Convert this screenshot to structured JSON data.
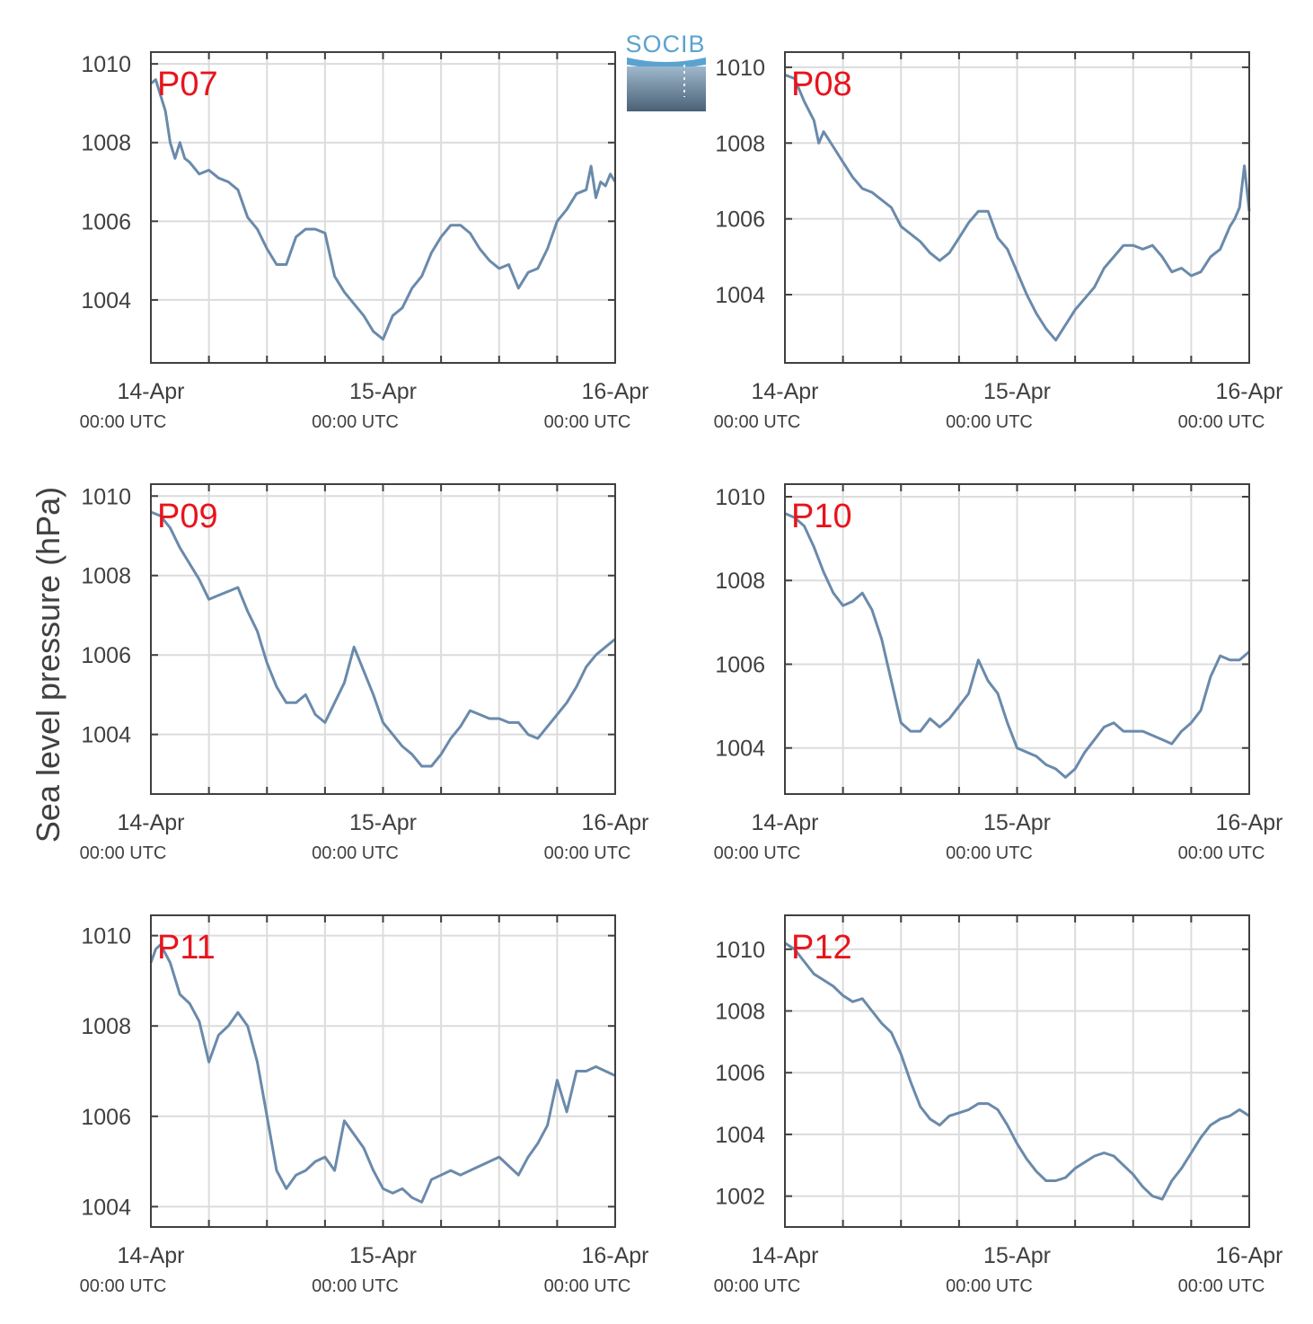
{
  "figure": {
    "ylabel": "Sea level pressure (hPa)",
    "logo_text": "SOCIB",
    "line_color": "#6a8aab",
    "label_color": "#e8141c",
    "grid_color": "#dcdcdc"
  },
  "chart_data": [
    {
      "type": "line",
      "title": "P07",
      "ylim": [
        1002.4,
        1010.3
      ],
      "yticks": [
        1004,
        1006,
        1008,
        1010
      ],
      "xlim": [
        0,
        48
      ],
      "xticks": [
        {
          "x": 0,
          "main": "14-Apr",
          "sub": "00:00 UTC"
        },
        {
          "x": 24,
          "main": "15-Apr",
          "sub": "00:00 UTC"
        },
        {
          "x": 48,
          "main": "16-Apr",
          "sub": "00:00 UTC"
        }
      ],
      "series": [
        {
          "x": [
            0,
            0.5,
            1,
            1.5,
            2,
            2.5,
            3,
            3.5,
            4,
            5,
            6,
            7,
            8,
            9,
            10,
            11,
            12,
            13,
            14,
            15,
            16,
            17,
            18,
            19,
            20,
            21,
            22,
            23,
            24,
            25,
            26,
            27,
            28,
            29,
            30,
            31,
            32,
            33,
            34,
            35,
            36,
            37,
            38,
            39,
            40,
            41,
            42,
            43,
            44,
            45,
            45.5,
            46,
            46.5,
            47,
            47.5,
            48
          ],
          "y": [
            1009.5,
            1009.6,
            1009.2,
            1008.8,
            1008.0,
            1007.6,
            1008.0,
            1007.6,
            1007.5,
            1007.2,
            1007.3,
            1007.1,
            1007.0,
            1006.8,
            1006.1,
            1005.8,
            1005.3,
            1004.9,
            1004.9,
            1005.6,
            1005.8,
            1005.8,
            1005.7,
            1004.6,
            1004.2,
            1003.9,
            1003.6,
            1003.2,
            1003.0,
            1003.6,
            1003.8,
            1004.3,
            1004.6,
            1005.2,
            1005.6,
            1005.9,
            1005.9,
            1005.7,
            1005.3,
            1005.0,
            1004.8,
            1004.9,
            1004.3,
            1004.7,
            1004.8,
            1005.3,
            1006.0,
            1006.3,
            1006.7,
            1006.8,
            1007.4,
            1006.6,
            1007.0,
            1006.9,
            1007.2,
            1007.0
          ]
        }
      ]
    },
    {
      "type": "line",
      "title": "P08",
      "ylim": [
        1002.2,
        1010.4
      ],
      "yticks": [
        1004,
        1006,
        1008,
        1010
      ],
      "xlim": [
        0,
        48
      ],
      "xticks": [
        {
          "x": 0,
          "main": "14-Apr",
          "sub": "00:00 UTC"
        },
        {
          "x": 24,
          "main": "15-Apr",
          "sub": "00:00 UTC"
        },
        {
          "x": 48,
          "main": "16-Apr",
          "sub": "00:00 UTC"
        }
      ],
      "series": [
        {
          "x": [
            0,
            1,
            2,
            3,
            3.5,
            4,
            5,
            6,
            7,
            8,
            9,
            10,
            11,
            12,
            13,
            14,
            15,
            16,
            17,
            18,
            19,
            20,
            21,
            22,
            23,
            24,
            25,
            26,
            27,
            28,
            29,
            30,
            31,
            32,
            33,
            34,
            35,
            36,
            37,
            38,
            39,
            40,
            41,
            42,
            43,
            44,
            45,
            46,
            46.5,
            47,
            47.5,
            48
          ],
          "y": [
            1009.8,
            1009.7,
            1009.1,
            1008.6,
            1008.0,
            1008.3,
            1007.9,
            1007.5,
            1007.1,
            1006.8,
            1006.7,
            1006.5,
            1006.3,
            1005.8,
            1005.6,
            1005.4,
            1005.1,
            1004.9,
            1005.1,
            1005.5,
            1005.9,
            1006.2,
            1006.2,
            1005.5,
            1005.2,
            1004.6,
            1004.0,
            1003.5,
            1003.1,
            1002.8,
            1003.2,
            1003.6,
            1003.9,
            1004.2,
            1004.7,
            1005.0,
            1005.3,
            1005.3,
            1005.2,
            1005.3,
            1005.0,
            1004.6,
            1004.7,
            1004.5,
            1004.6,
            1005.0,
            1005.2,
            1005.8,
            1006.0,
            1006.3,
            1007.4,
            1006.2
          ]
        }
      ]
    },
    {
      "type": "line",
      "title": "P09",
      "ylim": [
        1002.5,
        1010.3
      ],
      "yticks": [
        1004,
        1006,
        1008,
        1010
      ],
      "xlim": [
        0,
        48
      ],
      "xticks": [
        {
          "x": 0,
          "main": "14-Apr",
          "sub": "00:00 UTC"
        },
        {
          "x": 24,
          "main": "15-Apr",
          "sub": "00:00 UTC"
        },
        {
          "x": 48,
          "main": "16-Apr",
          "sub": "00:00 UTC"
        }
      ],
      "series": [
        {
          "x": [
            0,
            1,
            2,
            3,
            4,
            5,
            6,
            7,
            8,
            9,
            10,
            11,
            12,
            13,
            14,
            15,
            16,
            17,
            18,
            19,
            20,
            21,
            22,
            23,
            24,
            25,
            26,
            27,
            28,
            29,
            30,
            31,
            32,
            33,
            34,
            35,
            36,
            37,
            38,
            39,
            40,
            41,
            42,
            43,
            44,
            45,
            46,
            47,
            48
          ],
          "y": [
            1009.6,
            1009.5,
            1009.2,
            1008.7,
            1008.3,
            1007.9,
            1007.4,
            1007.5,
            1007.6,
            1007.7,
            1007.1,
            1006.6,
            1005.8,
            1005.2,
            1004.8,
            1004.8,
            1005.0,
            1004.5,
            1004.3,
            1004.8,
            1005.3,
            1006.2,
            1005.6,
            1005.0,
            1004.3,
            1004.0,
            1003.7,
            1003.5,
            1003.2,
            1003.2,
            1003.5,
            1003.9,
            1004.2,
            1004.6,
            1004.5,
            1004.4,
            1004.4,
            1004.3,
            1004.3,
            1004.0,
            1003.9,
            1004.2,
            1004.5,
            1004.8,
            1005.2,
            1005.7,
            1006.0,
            1006.2,
            1006.4
          ]
        }
      ]
    },
    {
      "type": "line",
      "title": "P10",
      "ylim": [
        1002.9,
        1010.3
      ],
      "yticks": [
        1004,
        1006,
        1008,
        1010
      ],
      "xlim": [
        0,
        48
      ],
      "xticks": [
        {
          "x": 0,
          "main": "14-Apr",
          "sub": "00:00 UTC"
        },
        {
          "x": 24,
          "main": "15-Apr",
          "sub": "00:00 UTC"
        },
        {
          "x": 48,
          "main": "16-Apr",
          "sub": "00:00 UTC"
        }
      ],
      "series": [
        {
          "x": [
            0,
            1,
            2,
            3,
            4,
            5,
            6,
            7,
            8,
            9,
            10,
            11,
            12,
            13,
            14,
            15,
            16,
            17,
            18,
            19,
            20,
            21,
            22,
            23,
            24,
            25,
            26,
            27,
            28,
            29,
            30,
            31,
            32,
            33,
            34,
            35,
            36,
            37,
            38,
            39,
            40,
            41,
            42,
            43,
            44,
            45,
            46,
            47,
            48
          ],
          "y": [
            1009.6,
            1009.5,
            1009.3,
            1008.8,
            1008.2,
            1007.7,
            1007.4,
            1007.5,
            1007.7,
            1007.3,
            1006.6,
            1005.6,
            1004.6,
            1004.4,
            1004.4,
            1004.7,
            1004.5,
            1004.7,
            1005.0,
            1005.3,
            1006.1,
            1005.6,
            1005.3,
            1004.6,
            1004.0,
            1003.9,
            1003.8,
            1003.6,
            1003.5,
            1003.3,
            1003.5,
            1003.9,
            1004.2,
            1004.5,
            1004.6,
            1004.4,
            1004.4,
            1004.4,
            1004.3,
            1004.2,
            1004.1,
            1004.4,
            1004.6,
            1004.9,
            1005.7,
            1006.2,
            1006.1,
            1006.1,
            1006.3
          ]
        }
      ]
    },
    {
      "type": "line",
      "title": "P11",
      "ylim": [
        1003.55,
        1010.45
      ],
      "yticks": [
        1004,
        1006,
        1008,
        1010
      ],
      "xlim": [
        0,
        48
      ],
      "xticks": [
        {
          "x": 0,
          "main": "14-Apr",
          "sub": "00:00 UTC"
        },
        {
          "x": 24,
          "main": "15-Apr",
          "sub": "00:00 UTC"
        },
        {
          "x": 48,
          "main": "16-Apr",
          "sub": "00:00 UTC"
        }
      ],
      "series": [
        {
          "x": [
            0,
            0.5,
            1,
            1.5,
            2,
            3,
            4,
            5,
            6,
            7,
            8,
            9,
            10,
            11,
            12,
            13,
            14,
            15,
            16,
            17,
            18,
            19,
            20,
            21,
            22,
            23,
            24,
            25,
            26,
            27,
            28,
            29,
            30,
            31,
            32,
            33,
            34,
            35,
            36,
            37,
            38,
            39,
            40,
            41,
            42,
            43,
            44,
            45,
            46,
            47,
            48
          ],
          "y": [
            1009.4,
            1009.7,
            1009.8,
            1009.6,
            1009.4,
            1008.7,
            1008.5,
            1008.1,
            1007.2,
            1007.8,
            1008.0,
            1008.3,
            1008.0,
            1007.2,
            1006.0,
            1004.8,
            1004.4,
            1004.7,
            1004.8,
            1005.0,
            1005.1,
            1004.8,
            1005.9,
            1005.6,
            1005.3,
            1004.8,
            1004.4,
            1004.3,
            1004.4,
            1004.2,
            1004.1,
            1004.6,
            1004.7,
            1004.8,
            1004.7,
            1004.8,
            1004.9,
            1005.0,
            1005.1,
            1004.9,
            1004.7,
            1005.1,
            1005.4,
            1005.8,
            1006.8,
            1006.1,
            1007.0,
            1007.0,
            1007.1,
            1007.0,
            1006.9
          ]
        }
      ]
    },
    {
      "type": "line",
      "title": "P12",
      "ylim": [
        1001.0,
        1011.1
      ],
      "yticks": [
        1002,
        1004,
        1006,
        1008,
        1010
      ],
      "xlim": [
        0,
        48
      ],
      "xticks": [
        {
          "x": 0,
          "main": "14-Apr",
          "sub": "00:00 UTC"
        },
        {
          "x": 24,
          "main": "15-Apr",
          "sub": "00:00 UTC"
        },
        {
          "x": 48,
          "main": "16-Apr",
          "sub": "00:00 UTC"
        }
      ],
      "series": [
        {
          "x": [
            0,
            1,
            2,
            3,
            4,
            5,
            6,
            7,
            8,
            9,
            10,
            11,
            12,
            13,
            14,
            15,
            16,
            17,
            18,
            19,
            20,
            21,
            22,
            23,
            24,
            25,
            26,
            27,
            28,
            29,
            30,
            31,
            32,
            33,
            34,
            35,
            36,
            37,
            38,
            39,
            40,
            41,
            42,
            43,
            44,
            45,
            46,
            47,
            48
          ],
          "y": [
            1010.2,
            1010.0,
            1009.6,
            1009.2,
            1009.0,
            1008.8,
            1008.5,
            1008.3,
            1008.4,
            1008.0,
            1007.6,
            1007.3,
            1006.6,
            1005.7,
            1004.9,
            1004.5,
            1004.3,
            1004.6,
            1004.7,
            1004.8,
            1005.0,
            1005.0,
            1004.8,
            1004.3,
            1003.7,
            1003.2,
            1002.8,
            1002.5,
            1002.5,
            1002.6,
            1002.9,
            1003.1,
            1003.3,
            1003.4,
            1003.3,
            1003.0,
            1002.7,
            1002.3,
            1002.0,
            1001.9,
            1002.5,
            1002.9,
            1003.4,
            1003.9,
            1004.3,
            1004.5,
            1004.6,
            1004.8,
            1004.6
          ]
        }
      ]
    }
  ]
}
